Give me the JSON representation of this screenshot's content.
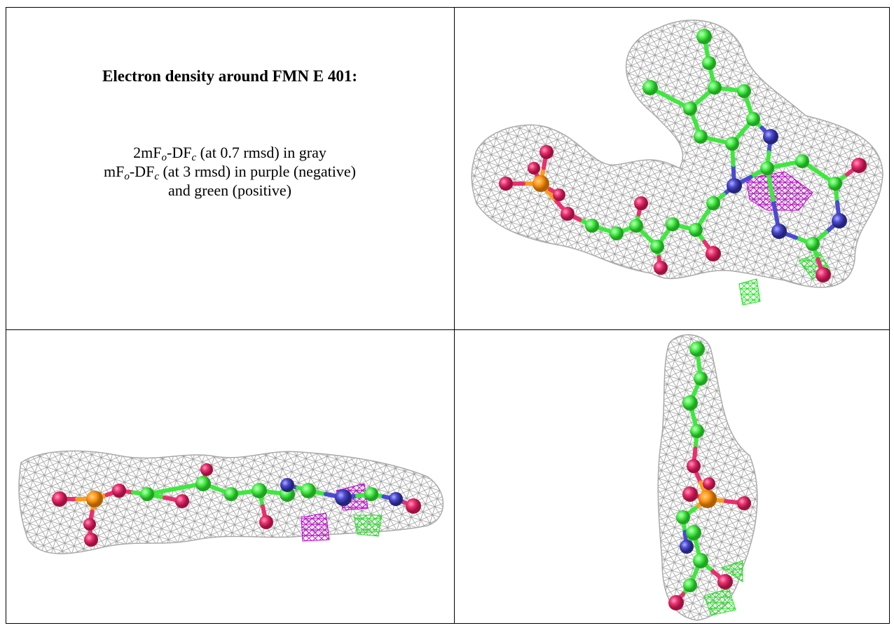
{
  "cell_text": {
    "heading": "Electron density around FMN E 401:",
    "line1": {
      "a": "2mF",
      "sub1": "o",
      "b": "-DF",
      "sub2": "c",
      "rest": " (at 0.7 rmsd) in gray"
    },
    "line2": {
      "a": "mF",
      "sub1": "o",
      "b": "-DF",
      "sub2": "c",
      "rest": " (at 3 rmsd) in purple (negative)"
    },
    "line3": "and green (positive)"
  }
}
